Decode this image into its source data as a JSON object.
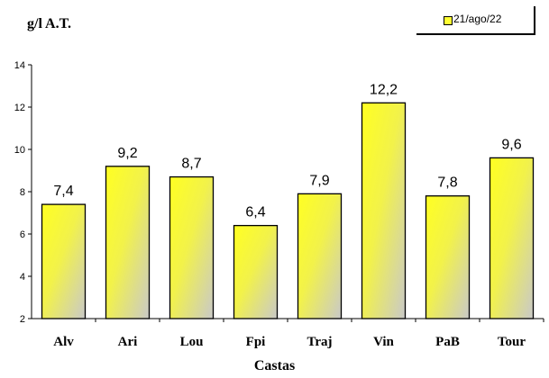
{
  "chart_data": {
    "type": "bar",
    "title": "",
    "ylabel": "g/l A.T.",
    "xlabel": "Castas",
    "ylim": [
      2,
      14
    ],
    "yticks": [
      2,
      4,
      6,
      8,
      10,
      12,
      14
    ],
    "categories": [
      "Alv",
      "Ari",
      "Lou",
      "Fpi",
      "Traj",
      "Vin",
      "PaB",
      "Tour"
    ],
    "series": [
      {
        "name": "21/ago/22",
        "values": [
          7.4,
          9.2,
          8.7,
          6.4,
          7.9,
          12.2,
          7.8,
          9.6
        ]
      }
    ],
    "data_labels": [
      "7,4",
      "9,2",
      "8,7",
      "6,4",
      "7,9",
      "12,2",
      "7,8",
      "9,6"
    ],
    "legend_position": "top-right",
    "grid": false,
    "bar_color": "#ffff33"
  }
}
